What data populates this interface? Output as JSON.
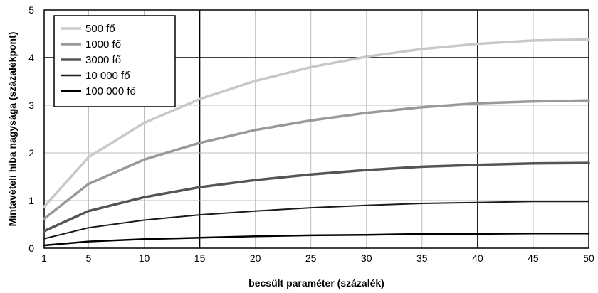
{
  "chart_data": {
    "type": "line",
    "xlabel": "becsült paraméter (százalék)",
    "ylabel": "Mintavételi hiba nagysága (százalékpont)",
    "x": [
      1,
      5,
      10,
      15,
      20,
      25,
      30,
      35,
      40,
      45,
      50
    ],
    "xticks": [
      "1",
      "5",
      "10",
      "15",
      "20",
      "25",
      "30",
      "35",
      "40",
      "45",
      "50"
    ],
    "yticks": [
      "0",
      "1",
      "2",
      "3",
      "4",
      "5"
    ],
    "ylim": [
      0,
      5
    ],
    "grid": true,
    "legend_position": "top-left",
    "series": [
      {
        "name": "500 fő",
        "color": "#c8c8c8",
        "width": 3.5,
        "values": [
          0.87,
          1.91,
          2.63,
          3.13,
          3.51,
          3.8,
          4.02,
          4.18,
          4.29,
          4.36,
          4.38
        ]
      },
      {
        "name": "1000 fő",
        "color": "#999999",
        "width": 3.5,
        "values": [
          0.62,
          1.35,
          1.86,
          2.21,
          2.48,
          2.68,
          2.84,
          2.96,
          3.04,
          3.08,
          3.1
        ]
      },
      {
        "name": "3000 fő",
        "color": "#555555",
        "width": 3.5,
        "values": [
          0.36,
          0.78,
          1.07,
          1.28,
          1.43,
          1.55,
          1.64,
          1.71,
          1.75,
          1.78,
          1.79
        ]
      },
      {
        "name": "10 000 fő",
        "color": "#1a1a1a",
        "width": 2,
        "values": [
          0.2,
          0.43,
          0.59,
          0.7,
          0.78,
          0.85,
          0.9,
          0.94,
          0.96,
          0.98,
          0.98
        ]
      },
      {
        "name": "100 000 fő",
        "color": "#000000",
        "width": 2.5,
        "values": [
          0.06,
          0.14,
          0.19,
          0.22,
          0.25,
          0.27,
          0.28,
          0.3,
          0.3,
          0.31,
          0.31
        ]
      }
    ]
  }
}
